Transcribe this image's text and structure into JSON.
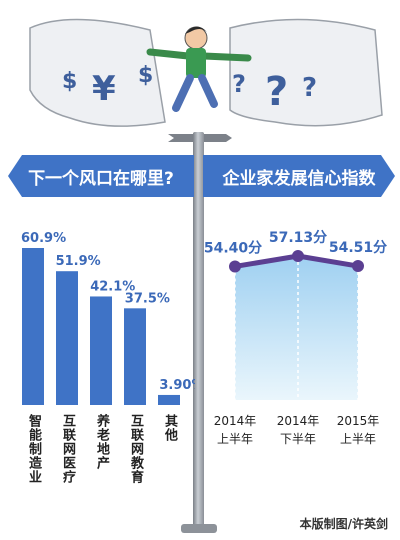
{
  "left_title": "下一个风口在哪里?",
  "right_title": "企业家发展信心指数",
  "credit": "本版制图/许英剑",
  "illustration": {
    "symbols": [
      "$",
      "¥",
      "$",
      "?",
      "?",
      "?"
    ]
  },
  "colors": {
    "banner": "#3f73c6",
    "bar": "#3f73c6",
    "area": "#9fd0f1",
    "line": "#5b3f92"
  },
  "chart_data": [
    {
      "type": "bar",
      "categories": [
        "智能制造业",
        "互联网医疗",
        "养老地产",
        "互联网教育",
        "其他"
      ],
      "values": [
        60.9,
        51.9,
        42.1,
        37.5,
        3.9
      ],
      "value_labels": [
        "60.9%",
        "51.9%",
        "42.1%",
        "37.5%",
        "3.90%"
      ],
      "ylim": [
        0,
        70
      ]
    },
    {
      "type": "area",
      "categories": [
        "2014年上半年",
        "2014年下半年",
        "2015年上半年"
      ],
      "category_lines": [
        [
          "2014年",
          "上半年"
        ],
        [
          "2014年",
          "下半年"
        ],
        [
          "2015年",
          "上半年"
        ]
      ],
      "values": [
        54.4,
        57.13,
        54.51
      ],
      "value_labels": [
        "54.40分",
        "57.13分",
        "54.51分"
      ]
    }
  ]
}
